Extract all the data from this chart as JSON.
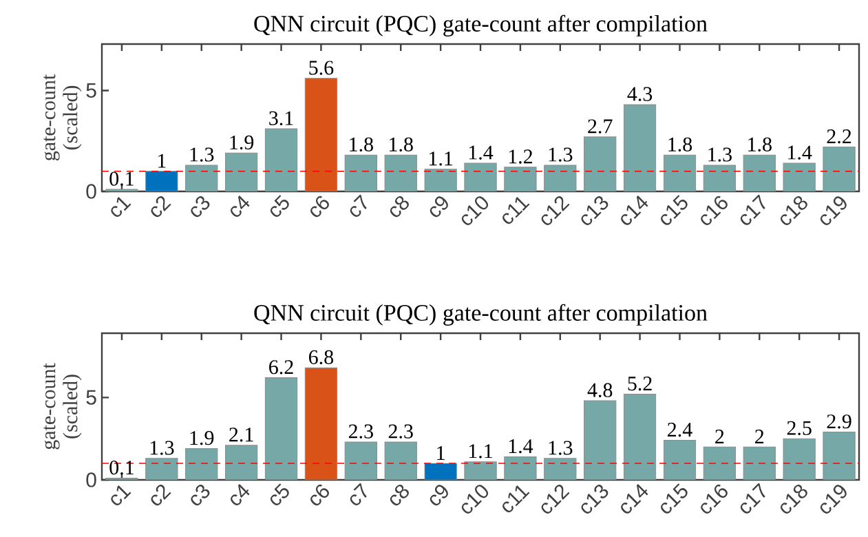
{
  "chart_data": [
    {
      "type": "bar",
      "title": "QNN circuit (PQC) gate-count after compilation",
      "ylabel": "gate-count (scaled)",
      "categories": [
        "c1",
        "c2",
        "c3",
        "c4",
        "c5",
        "c6",
        "c7",
        "c8",
        "c9",
        "c10",
        "c11",
        "c12",
        "c13",
        "c14",
        "c15",
        "c16",
        "c17",
        "c18",
        "c19"
      ],
      "values": [
        0.1,
        1,
        1.3,
        1.9,
        3.1,
        5.6,
        1.8,
        1.8,
        1.1,
        1.4,
        1.2,
        1.3,
        2.7,
        4.3,
        1.8,
        1.3,
        1.8,
        1.4,
        2.2
      ],
      "colors": [
        "#76a8a8",
        "#0072bd",
        "#76a8a8",
        "#76a8a8",
        "#76a8a8",
        "#d95319",
        "#76a8a8",
        "#76a8a8",
        "#76a8a8",
        "#76a8a8",
        "#76a8a8",
        "#76a8a8",
        "#76a8a8",
        "#76a8a8",
        "#76a8a8",
        "#76a8a8",
        "#76a8a8",
        "#76a8a8",
        "#76a8a8"
      ],
      "ylim": [
        0,
        7.3
      ],
      "yticks": [
        0,
        5
      ],
      "data_labels": true,
      "ref_lines": [
        {
          "axis": "y",
          "value": 1,
          "color": "#ff0000",
          "line_style": "dashed"
        }
      ]
    },
    {
      "type": "bar",
      "title": "QNN circuit (PQC) gate-count after compilation",
      "ylabel": "gate-count (scaled)",
      "categories": [
        "c1",
        "c2",
        "c3",
        "c4",
        "c5",
        "c6",
        "c7",
        "c8",
        "c9",
        "c10",
        "c11",
        "c12",
        "c13",
        "c14",
        "c15",
        "c16",
        "c17",
        "c18",
        "c19"
      ],
      "values": [
        0.1,
        1.3,
        1.9,
        2.1,
        6.2,
        6.8,
        2.3,
        2.3,
        1,
        1.1,
        1.4,
        1.3,
        4.8,
        5.2,
        2.4,
        2,
        2,
        2.5,
        2.9
      ],
      "colors": [
        "#76a8a8",
        "#76a8a8",
        "#76a8a8",
        "#76a8a8",
        "#76a8a8",
        "#d95319",
        "#76a8a8",
        "#76a8a8",
        "#0072bd",
        "#76a8a8",
        "#76a8a8",
        "#76a8a8",
        "#76a8a8",
        "#76a8a8",
        "#76a8a8",
        "#76a8a8",
        "#76a8a8",
        "#76a8a8",
        "#76a8a8"
      ],
      "ylim": [
        0,
        8.9
      ],
      "yticks": [
        0,
        5
      ],
      "data_labels": true,
      "ref_lines": [
        {
          "axis": "y",
          "value": 1,
          "color": "#ff0000",
          "line_style": "dashed"
        }
      ]
    }
  ]
}
